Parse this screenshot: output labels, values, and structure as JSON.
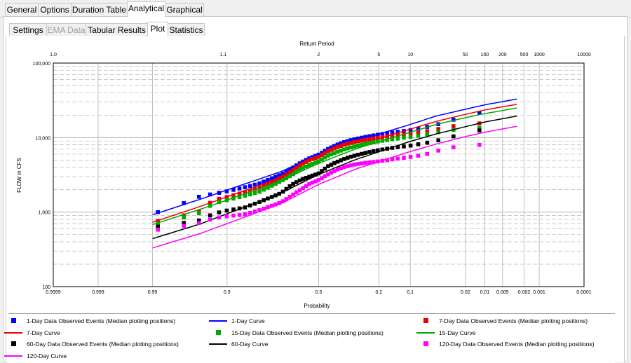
{
  "tabs": [
    "General",
    "Options",
    "Duration Table",
    "Analytical",
    "Graphical"
  ],
  "active_tab": "Analytical",
  "subtabs": [
    "Settings",
    "EMA Data",
    "Tabular Results",
    "Plot",
    "Statistics"
  ],
  "active_subtab": "Plot",
  "disabled_subtab": "EMA Data",
  "chart_data": {
    "type": "scatter",
    "title": "",
    "top_axis_label": "Return Period",
    "xlabel": "Probability",
    "ylabel": "FLOW in CFS",
    "x_scale": "normal-probability (reversed, exceedance)",
    "y_scale": "log",
    "ylim": [
      100,
      100000
    ],
    "xlim": [
      0.9999,
      0.0001
    ],
    "x_ticks": [
      {
        "p": 0.9999,
        "label": "0.9999"
      },
      {
        "p": 0.999,
        "label": "0.999"
      },
      {
        "p": 0.99,
        "label": "0.99"
      },
      {
        "p": 0.9,
        "label": "0.9"
      },
      {
        "p": 0.5,
        "label": "0.5"
      },
      {
        "p": 0.2,
        "label": "0.2"
      },
      {
        "p": 0.1,
        "label": "0.1"
      },
      {
        "p": 0.02,
        "label": "0.02"
      },
      {
        "p": 0.01,
        "label": "0.01"
      },
      {
        "p": 0.005,
        "label": "0.005"
      },
      {
        "p": 0.002,
        "label": "0.002"
      },
      {
        "p": 0.001,
        "label": "0.001"
      },
      {
        "p": 0.0001,
        "label": "0.0001"
      }
    ],
    "top_ticks": [
      {
        "p": 0.9999,
        "label": "1.0"
      },
      {
        "p": 0.9091,
        "label": "1.1"
      },
      {
        "p": 0.5,
        "label": "2"
      },
      {
        "p": 0.2,
        "label": "5"
      },
      {
        "p": 0.1,
        "label": "10"
      },
      {
        "p": 0.02,
        "label": "50"
      },
      {
        "p": 0.01,
        "label": "100"
      },
      {
        "p": 0.005,
        "label": "200"
      },
      {
        "p": 0.002,
        "label": "500"
      },
      {
        "p": 0.001,
        "label": "1000"
      },
      {
        "p": 0.0001,
        "label": "10000"
      }
    ],
    "y_ticks": [
      {
        "v": 100,
        "label": "100"
      },
      {
        "v": 1000,
        "label": "1,000"
      },
      {
        "v": 10000,
        "label": "10,000"
      },
      {
        "v": 100000,
        "label": "100,000"
      }
    ],
    "grid": true,
    "n_events": 57,
    "series": [
      {
        "name": "1-Day Data Observed Events (Median plotting positions)",
        "kind": "points",
        "color": "#0000ff",
        "anchors": [
          [
            0.986,
            1000
          ],
          [
            0.95,
            1650
          ],
          [
            0.93,
            1750
          ],
          [
            0.9,
            1900
          ],
          [
            0.85,
            2150
          ],
          [
            0.8,
            2400
          ],
          [
            0.7,
            3200
          ],
          [
            0.65,
            3800
          ],
          [
            0.6,
            4600
          ],
          [
            0.55,
            5300
          ],
          [
            0.5,
            5900
          ],
          [
            0.45,
            7000
          ],
          [
            0.4,
            8000
          ],
          [
            0.35,
            8900
          ],
          [
            0.3,
            9600
          ],
          [
            0.25,
            10300
          ],
          [
            0.2,
            11000
          ],
          [
            0.15,
            11700
          ],
          [
            0.1,
            12600
          ],
          [
            0.07,
            13600
          ],
          [
            0.05,
            14800
          ],
          [
            0.04,
            16000
          ],
          [
            0.0121,
            21500
          ]
        ]
      },
      {
        "name": "1-Day Curve",
        "kind": "line",
        "color": "#0000ff",
        "anchors": [
          [
            0.99,
            920
          ],
          [
            0.95,
            1500
          ],
          [
            0.9,
            1980
          ],
          [
            0.7,
            3500
          ],
          [
            0.5,
            5900
          ],
          [
            0.3,
            9000
          ],
          [
            0.1,
            15000
          ],
          [
            0.05,
            19500
          ],
          [
            0.02,
            24000
          ],
          [
            0.01,
            27500
          ],
          [
            0.0027,
            33000
          ]
        ]
      },
      {
        "name": "7-Day Data Observed Events (Median plotting positions)",
        "kind": "points",
        "color": "#ee0000",
        "anchors": [
          [
            0.986,
            760
          ],
          [
            0.95,
            1040
          ],
          [
            0.93,
            1450
          ],
          [
            0.9,
            1600
          ],
          [
            0.85,
            1850
          ],
          [
            0.8,
            2100
          ],
          [
            0.7,
            2900
          ],
          [
            0.65,
            3500
          ],
          [
            0.6,
            4300
          ],
          [
            0.55,
            5000
          ],
          [
            0.5,
            5500
          ],
          [
            0.45,
            6500
          ],
          [
            0.4,
            7400
          ],
          [
            0.35,
            8200
          ],
          [
            0.3,
            8800
          ],
          [
            0.25,
            9400
          ],
          [
            0.2,
            10000
          ],
          [
            0.15,
            10700
          ],
          [
            0.1,
            11400
          ],
          [
            0.07,
            12000
          ],
          [
            0.05,
            12800
          ],
          [
            0.04,
            13800
          ],
          [
            0.0121,
            15500
          ]
        ]
      },
      {
        "name": "7-Day Curve",
        "kind": "line",
        "color": "#ee0000",
        "anchors": [
          [
            0.99,
            730
          ],
          [
            0.95,
            1200
          ],
          [
            0.9,
            1600
          ],
          [
            0.7,
            2900
          ],
          [
            0.5,
            5000
          ],
          [
            0.3,
            7800
          ],
          [
            0.1,
            13000
          ],
          [
            0.05,
            16500
          ],
          [
            0.02,
            20500
          ],
          [
            0.01,
            23500
          ],
          [
            0.0027,
            28000
          ]
        ]
      },
      {
        "name": "15-Day Data Observed Events (Median plotting positions)",
        "kind": "points",
        "color": "#00aa00",
        "anchors": [
          [
            0.986,
            700
          ],
          [
            0.95,
            980
          ],
          [
            0.93,
            1300
          ],
          [
            0.9,
            1450
          ],
          [
            0.85,
            1650
          ],
          [
            0.8,
            1850
          ],
          [
            0.7,
            2600
          ],
          [
            0.65,
            3100
          ],
          [
            0.6,
            3800
          ],
          [
            0.55,
            4300
          ],
          [
            0.5,
            4800
          ],
          [
            0.45,
            5700
          ],
          [
            0.4,
            6400
          ],
          [
            0.35,
            7100
          ],
          [
            0.3,
            7700
          ],
          [
            0.25,
            8300
          ],
          [
            0.2,
            8900
          ],
          [
            0.15,
            9500
          ],
          [
            0.1,
            10200
          ],
          [
            0.07,
            10900
          ],
          [
            0.05,
            11600
          ],
          [
            0.04,
            12400
          ],
          [
            0.0121,
            13500
          ]
        ]
      },
      {
        "name": "15-Day Curve",
        "kind": "line",
        "color": "#00aa00",
        "anchors": [
          [
            0.99,
            680
          ],
          [
            0.95,
            1100
          ],
          [
            0.9,
            1450
          ],
          [
            0.7,
            2650
          ],
          [
            0.5,
            4500
          ],
          [
            0.3,
            7100
          ],
          [
            0.1,
            11800
          ],
          [
            0.05,
            15000
          ],
          [
            0.02,
            18500
          ],
          [
            0.01,
            21000
          ],
          [
            0.0027,
            25000
          ]
        ]
      },
      {
        "name": "60-Day Data Observed Events (Median plotting positions)",
        "kind": "points",
        "color": "#000000",
        "anchors": [
          [
            0.986,
            640
          ],
          [
            0.95,
            780
          ],
          [
            0.93,
            950
          ],
          [
            0.9,
            1050
          ],
          [
            0.85,
            1150
          ],
          [
            0.8,
            1350
          ],
          [
            0.7,
            1800
          ],
          [
            0.65,
            2300
          ],
          [
            0.6,
            2700
          ],
          [
            0.55,
            3000
          ],
          [
            0.5,
            3300
          ],
          [
            0.45,
            4100
          ],
          [
            0.4,
            4700
          ],
          [
            0.35,
            5300
          ],
          [
            0.3,
            5800
          ],
          [
            0.25,
            6300
          ],
          [
            0.2,
            6800
          ],
          [
            0.15,
            7300
          ],
          [
            0.1,
            7800
          ],
          [
            0.07,
            8400
          ],
          [
            0.05,
            9000
          ],
          [
            0.04,
            9700
          ],
          [
            0.0121,
            12500
          ]
        ]
      },
      {
        "name": "60-Day Curve",
        "kind": "line",
        "color": "#000000",
        "anchors": [
          [
            0.99,
            440
          ],
          [
            0.95,
            700
          ],
          [
            0.9,
            950
          ],
          [
            0.7,
            1800
          ],
          [
            0.5,
            3200
          ],
          [
            0.3,
            5100
          ],
          [
            0.1,
            8900
          ],
          [
            0.05,
            11200
          ],
          [
            0.02,
            14000
          ],
          [
            0.01,
            16200
          ],
          [
            0.0027,
            19500
          ]
        ]
      },
      {
        "name": "120-Day Data Observed Events (Median plotting positions)",
        "kind": "points",
        "color": "#ff00ff",
        "anchors": [
          [
            0.986,
            580
          ],
          [
            0.95,
            720
          ],
          [
            0.93,
            820
          ],
          [
            0.9,
            880
          ],
          [
            0.85,
            930
          ],
          [
            0.8,
            1050
          ],
          [
            0.7,
            1350
          ],
          [
            0.65,
            1650
          ],
          [
            0.6,
            2000
          ],
          [
            0.55,
            2400
          ],
          [
            0.5,
            2700
          ],
          [
            0.45,
            3200
          ],
          [
            0.4,
            3700
          ],
          [
            0.35,
            4100
          ],
          [
            0.3,
            4400
          ],
          [
            0.25,
            4600
          ],
          [
            0.2,
            4800
          ],
          [
            0.15,
            5100
          ],
          [
            0.1,
            5500
          ],
          [
            0.07,
            5900
          ],
          [
            0.05,
            6500
          ],
          [
            0.04,
            7200
          ],
          [
            0.0121,
            8000
          ]
        ]
      },
      {
        "name": "120-Day Curve",
        "kind": "line",
        "color": "#ff00ff",
        "anchors": [
          [
            0.99,
            330
          ],
          [
            0.95,
            520
          ],
          [
            0.9,
            700
          ],
          [
            0.7,
            1300
          ],
          [
            0.5,
            2350
          ],
          [
            0.3,
            3800
          ],
          [
            0.1,
            6500
          ],
          [
            0.05,
            8200
          ],
          [
            0.02,
            10300
          ],
          [
            0.01,
            11800
          ],
          [
            0.0027,
            14200
          ]
        ]
      }
    ],
    "legend_position": "bottom",
    "legend": [
      {
        "label": "1-Day Data Observed Events (Median plotting positions)",
        "kind": "square",
        "color": "#0000ff"
      },
      {
        "label": "1-Day Curve",
        "kind": "line",
        "color": "#0000ff"
      },
      {
        "label": "7-Day Data Observed Events (Median plotting positions)",
        "kind": "square",
        "color": "#ee0000"
      },
      {
        "label": "7-Day Curve",
        "kind": "line",
        "color": "#ee0000"
      },
      {
        "label": "15-Day Data Observed Events (Median plotting positions)",
        "kind": "square",
        "color": "#00aa00"
      },
      {
        "label": "15-Day Curve",
        "kind": "line",
        "color": "#00aa00"
      },
      {
        "label": "60-Day Data Observed Events (Median plotting positions)",
        "kind": "square",
        "color": "#000000"
      },
      {
        "label": "60-Day Curve",
        "kind": "line",
        "color": "#000000"
      },
      {
        "label": "120-Day Data Observed Events (Median plotting positions)",
        "kind": "square",
        "color": "#ff00ff"
      },
      {
        "label": "120-Day Curve",
        "kind": "line",
        "color": "#ff00ff"
      }
    ]
  }
}
